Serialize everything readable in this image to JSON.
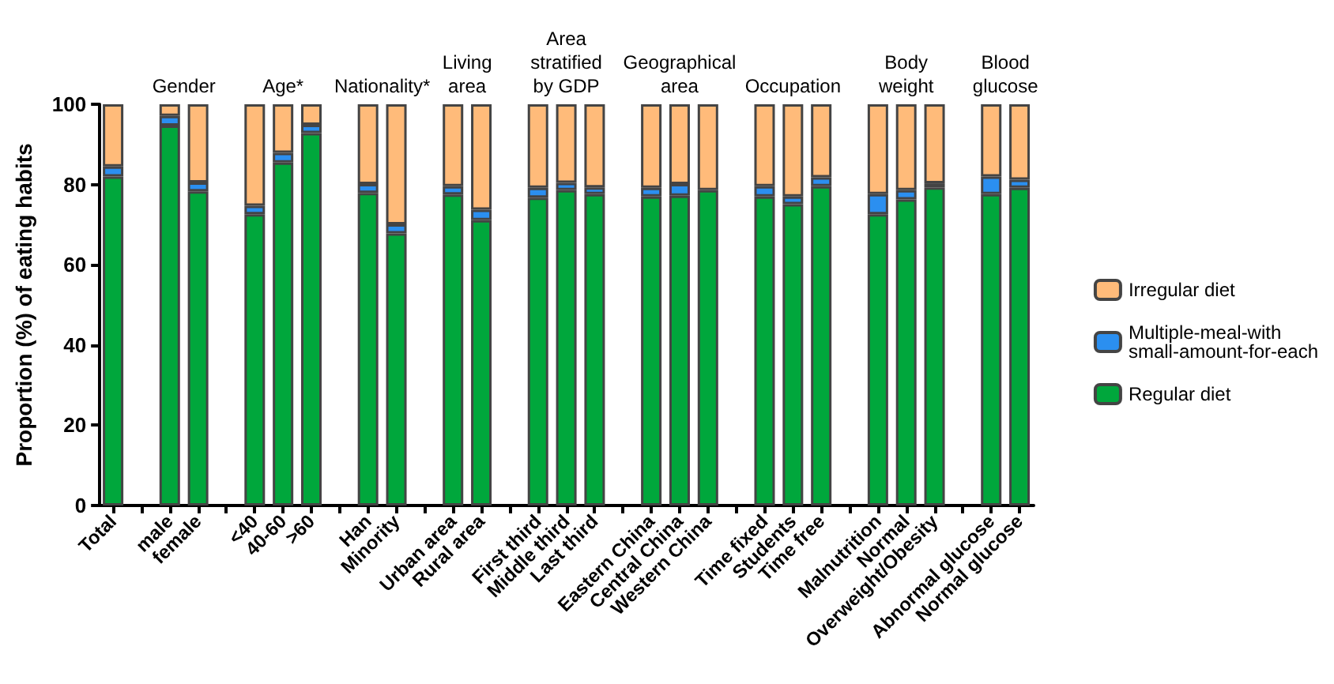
{
  "chart_data": {
    "type": "bar",
    "stacked": true,
    "ylabel": "Proportion (%) of eating habits",
    "categories": [
      "Total",
      null,
      "male",
      "female",
      null,
      "<40",
      "40-60",
      ">60",
      null,
      "Han",
      "Minority",
      null,
      "Urban area",
      "Rural area",
      null,
      "First third",
      "Middle third",
      "Last third",
      null,
      "Eastern China",
      "Central China",
      "Western China",
      null,
      "Time fixed",
      "Students",
      "Time free",
      null,
      "Malnutrition",
      "Normal",
      "Overweight/Obesity",
      null,
      "Abnormal glucose",
      "Normal glucose"
    ],
    "series": [
      {
        "name": "Regular diet",
        "color": "#00a73c",
        "values": [
          82.0,
          null,
          94.7,
          78.3,
          null,
          72.6,
          85.5,
          92.8,
          null,
          77.9,
          67.8,
          null,
          77.5,
          71.1,
          null,
          76.7,
          78.6,
          77.6,
          null,
          77.0,
          77.2,
          78.6,
          null,
          77.0,
          75.1,
          79.6,
          null,
          72.6,
          76.3,
          79.3,
          null,
          77.6,
          79.2
        ]
      },
      {
        "name": "Multiple-meal-with small-amount-for-each",
        "color": "#2b8ff0",
        "values": [
          2.5,
          null,
          2.4,
          2.2,
          null,
          2.1,
          2.4,
          2.1,
          null,
          2.2,
          2.3,
          null,
          2.1,
          2.6,
          null,
          2.5,
          1.8,
          1.7,
          null,
          2.2,
          2.9,
          null,
          null,
          2.6,
          1.9,
          2.2,
          null,
          5.0,
          2.3,
          1.0,
          null,
          4.4,
          2.0
        ]
      },
      {
        "name": "Irregular diet",
        "color": "#ffbb7a",
        "values": [
          15.5,
          null,
          2.9,
          19.5,
          null,
          25.3,
          12.1,
          5.1,
          null,
          19.9,
          29.9,
          null,
          20.4,
          26.3,
          null,
          20.8,
          19.6,
          20.7,
          null,
          20.8,
          19.9,
          21.4,
          null,
          20.4,
          23.0,
          18.2,
          null,
          22.4,
          21.4,
          19.7,
          null,
          18.0,
          18.8
        ]
      }
    ],
    "ylim": [
      0,
      100
    ],
    "yticks": [
      0,
      20,
      40,
      60,
      80,
      100
    ],
    "grid": false,
    "legend": "right",
    "annotations": [
      "Gender",
      "Age*",
      "Nationality*",
      "Living area",
      "Area stratified by GDP",
      "Geographical area",
      "Occupation",
      "Body weight",
      "Blood glucose"
    ]
  }
}
